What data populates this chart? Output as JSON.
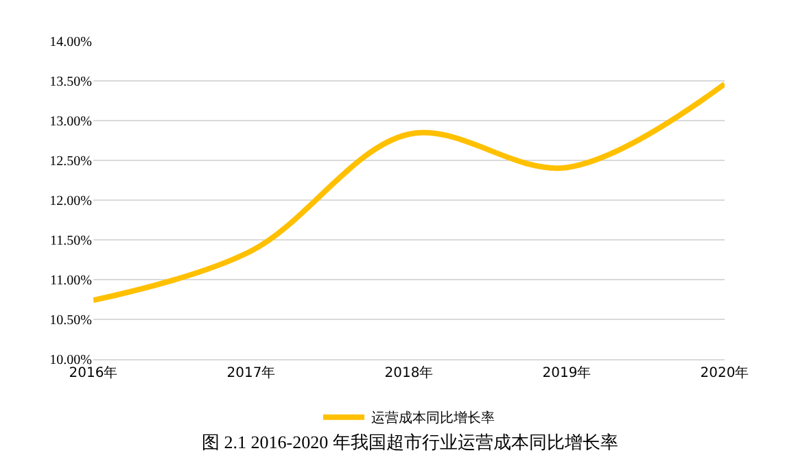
{
  "chart_data": {
    "type": "line",
    "categories": [
      "2016年",
      "2017年",
      "2018年",
      "2019年",
      "2020年"
    ],
    "series": [
      {
        "name": "运营成本同比增长率",
        "color": "#ffc000",
        "values": [
          10.74,
          11.36,
          12.83,
          12.41,
          13.46
        ]
      }
    ],
    "ylim": [
      10,
      14
    ],
    "yticks": [
      {
        "value": 10,
        "label": "10.00%"
      },
      {
        "value": 10.5,
        "label": "10.50%"
      },
      {
        "value": 11,
        "label": "11.00%"
      },
      {
        "value": 11.5,
        "label": "11.50%"
      },
      {
        "value": 12,
        "label": "12.00%"
      },
      {
        "value": 12.5,
        "label": "12.50%"
      },
      {
        "value": 13,
        "label": "13.00%"
      },
      {
        "value": 13.5,
        "label": "13.50%"
      },
      {
        "value": 14,
        "label": "14.00%"
      }
    ],
    "grid": "y",
    "legend": "bottom",
    "marker": "none",
    "line_style": "solid",
    "annotations": [
      "图 2.1 2016-2020 年我国超市行业运营成本同比增长率"
    ]
  }
}
